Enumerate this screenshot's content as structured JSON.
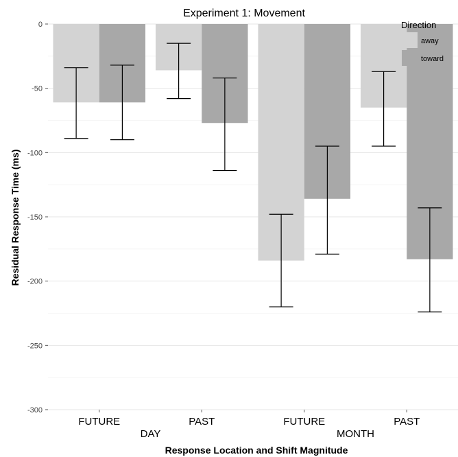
{
  "chart_data": {
    "type": "bar",
    "title": "Experiment 1: Movement",
    "xlabel": "Response Location and Shift Magnitude",
    "ylabel": "Residual Response Time (ms)",
    "ylim": [
      -300,
      0
    ],
    "yticks": [
      0,
      -50,
      -100,
      -150,
      -200,
      -250,
      -300
    ],
    "grid": true,
    "legend": {
      "title": "Direction",
      "placement": "top-right"
    },
    "categories": [
      "FUTURE",
      "PAST",
      "FUTURE",
      "PAST"
    ],
    "groups": [
      {
        "label": "DAY",
        "span": [
          0,
          1
        ]
      },
      {
        "label": "MONTH",
        "span": [
          2,
          3
        ]
      }
    ],
    "series": [
      {
        "name": "away",
        "color": "#d3d3d3",
        "values": [
          -61,
          -36,
          -184,
          -65
        ],
        "error_low": [
          -89,
          -58,
          -220,
          -95
        ],
        "error_high": [
          -34,
          -15,
          -148,
          -37
        ]
      },
      {
        "name": "toward",
        "color": "#a8a8a8",
        "values": [
          -61,
          -77,
          -136,
          -183
        ],
        "error_low": [
          -90,
          -114,
          -179,
          -224
        ],
        "error_high": [
          -32,
          -42,
          -95,
          -143
        ]
      }
    ]
  }
}
